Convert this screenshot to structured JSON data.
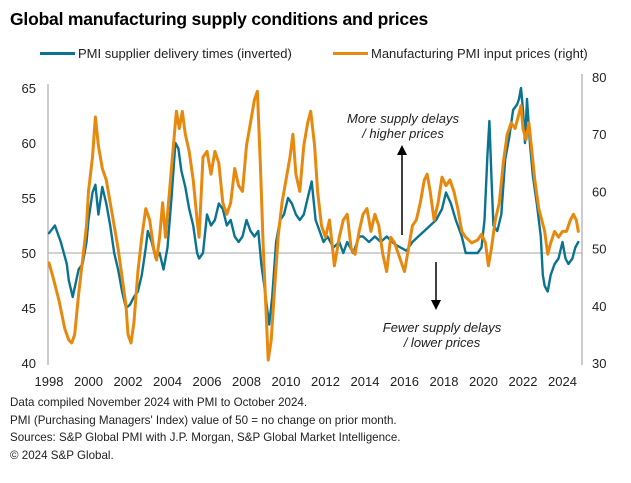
{
  "chart_data": {
    "type": "line",
    "title": "Global manufacturing supply conditions and prices",
    "xlabel": "",
    "ylabel": "",
    "y2label": "",
    "xlim": [
      1998,
      2024.9
    ],
    "ylim": [
      40,
      65
    ],
    "y2lim": [
      30,
      80
    ],
    "x_ticks": [
      "1998",
      "2000",
      "2002",
      "2004",
      "2006",
      "2008",
      "2010",
      "2012",
      "2014",
      "2016",
      "2018",
      "2020",
      "2022",
      "2024"
    ],
    "y_ticks": [
      "40",
      "45",
      "50",
      "55",
      "60",
      "65"
    ],
    "y2_ticks": [
      "30",
      "40",
      "50",
      "60",
      "70",
      "80"
    ],
    "reference_line": {
      "axis": "left",
      "value": 50
    },
    "grid": false,
    "legend_position": "top",
    "series": [
      {
        "name": "PMI supplier delivery times (inverted)",
        "axis": "left",
        "color": "#0A7391",
        "x": [
          1998.0,
          1998.3,
          1998.6,
          1998.9,
          1999.0,
          1999.2,
          1999.5,
          1999.7,
          1999.9,
          2000.0,
          2000.2,
          2000.35,
          2000.5,
          2000.7,
          2000.9,
          2001.1,
          2001.3,
          2001.5,
          2001.7,
          2001.9,
          2002.1,
          2002.3,
          2002.5,
          2002.7,
          2002.9,
          2003.0,
          2003.2,
          2003.4,
          2003.6,
          2003.8,
          2004.0,
          2004.2,
          2004.4,
          2004.55,
          2004.7,
          2004.9,
          2005.1,
          2005.3,
          2005.5,
          2005.6,
          2005.8,
          2006.0,
          2006.2,
          2006.4,
          2006.6,
          2006.8,
          2007.0,
          2007.2,
          2007.4,
          2007.6,
          2007.8,
          2008.0,
          2008.2,
          2008.4,
          2008.6,
          2008.75,
          2008.9,
          2009.0,
          2009.15,
          2009.3,
          2009.5,
          2009.7,
          2009.9,
          2010.1,
          2010.3,
          2010.5,
          2010.7,
          2010.9,
          2011.1,
          2011.3,
          2011.5,
          2011.7,
          2011.9,
          2012.1,
          2012.4,
          2012.7,
          2012.9,
          2013.1,
          2013.4,
          2013.7,
          2013.9,
          2014.2,
          2014.5,
          2014.8,
          2015.1,
          2015.5,
          2015.8,
          2016.1,
          2016.4,
          2016.7,
          2017.0,
          2017.3,
          2017.6,
          2017.9,
          2018.1,
          2018.35,
          2018.6,
          2018.9,
          2019.1,
          2019.4,
          2019.7,
          2019.9,
          2020.05,
          2020.2,
          2020.3,
          2020.4,
          2020.5,
          2020.7,
          2020.9,
          2021.1,
          2021.3,
          2021.5,
          2021.7,
          2021.8,
          2021.9,
          2022.0,
          2022.1,
          2022.2,
          2022.35,
          2022.5,
          2022.7,
          2022.9,
          2023.0,
          2023.1,
          2023.25,
          2023.4,
          2023.6,
          2023.8,
          2024.0,
          2024.15,
          2024.3,
          2024.5,
          2024.65,
          2024.8
        ],
        "values": [
          51.8,
          52.5,
          51,
          49,
          47.5,
          46,
          48.5,
          49,
          51,
          53,
          55.5,
          56.2,
          53.5,
          56,
          54.5,
          52.5,
          50,
          48.5,
          46.5,
          45,
          45.3,
          46,
          46.5,
          48,
          50.5,
          52,
          51,
          49.5,
          50,
          48.5,
          50.5,
          55,
          60,
          59.5,
          57.5,
          56,
          54,
          52.5,
          50,
          49.5,
          50,
          53.5,
          52.5,
          53,
          54.5,
          54,
          52.5,
          53,
          51.5,
          51,
          51.5,
          53,
          52,
          51.5,
          52,
          49,
          47,
          45.5,
          43.5,
          46,
          51,
          53,
          53.5,
          55,
          54.5,
          53.5,
          53,
          53.5,
          55,
          56.5,
          53,
          52,
          51,
          51.5,
          50.5,
          51,
          50,
          51,
          50,
          51.5,
          51.5,
          51,
          51.5,
          51,
          51.5,
          50.8,
          50.5,
          50.2,
          51,
          51.5,
          52,
          52.5,
          53,
          54,
          55.5,
          54.5,
          53,
          51.5,
          50,
          50,
          50,
          50.5,
          53,
          59,
          62,
          57,
          52.5,
          52,
          53.5,
          58.5,
          60.5,
          63,
          63.5,
          64,
          65,
          63,
          60,
          64,
          60,
          57,
          54.5,
          51.5,
          48,
          47,
          46.5,
          48,
          49,
          49.5,
          51,
          49.5,
          49,
          49.5,
          50.5,
          51
        ]
      },
      {
        "name": "Manufacturing PMI input prices (right)",
        "axis": "right",
        "color": "#E8890F",
        "x": [
          1998.0,
          1998.2,
          1998.5,
          1998.8,
          1999.0,
          1999.15,
          1999.3,
          1999.5,
          1999.7,
          1999.9,
          2000.0,
          2000.2,
          2000.35,
          2000.5,
          2000.7,
          2000.9,
          2001.1,
          2001.3,
          2001.5,
          2001.7,
          2001.9,
          2002.0,
          2002.15,
          2002.3,
          2002.5,
          2002.7,
          2002.9,
          2003.1,
          2003.3,
          2003.45,
          2003.6,
          2003.75,
          2003.9,
          2004.1,
          2004.3,
          2004.45,
          2004.6,
          2004.75,
          2004.9,
          2005.1,
          2005.3,
          2005.5,
          2005.6,
          2005.8,
          2006.0,
          2006.2,
          2006.4,
          2006.6,
          2006.8,
          2007.0,
          2007.2,
          2007.4,
          2007.6,
          2007.8,
          2008.0,
          2008.2,
          2008.4,
          2008.55,
          2008.7,
          2008.85,
          2009.0,
          2009.1,
          2009.25,
          2009.4,
          2009.6,
          2009.8,
          2010.0,
          2010.2,
          2010.35,
          2010.5,
          2010.7,
          2010.9,
          2011.1,
          2011.25,
          2011.45,
          2011.6,
          2011.8,
          2012.0,
          2012.2,
          2012.45,
          2012.7,
          2012.9,
          2013.1,
          2013.3,
          2013.5,
          2013.7,
          2013.9,
          2014.1,
          2014.3,
          2014.5,
          2014.7,
          2014.9,
          2015.1,
          2015.3,
          2015.5,
          2015.8,
          2016.0,
          2016.2,
          2016.4,
          2016.6,
          2016.8,
          2017.0,
          2017.15,
          2017.3,
          2017.5,
          2017.7,
          2017.9,
          2018.1,
          2018.3,
          2018.5,
          2018.7,
          2018.9,
          2019.1,
          2019.4,
          2019.7,
          2019.9,
          2020.1,
          2020.25,
          2020.4,
          2020.6,
          2020.8,
          2021.0,
          2021.2,
          2021.4,
          2021.6,
          2021.75,
          2021.9,
          2022.0,
          2022.15,
          2022.3,
          2022.45,
          2022.6,
          2022.8,
          2022.95,
          2023.1,
          2023.25,
          2023.4,
          2023.6,
          2023.8,
          2024.0,
          2024.2,
          2024.4,
          2024.55,
          2024.7,
          2024.8
        ],
        "values": [
          47.5,
          45,
          41,
          36,
          34,
          33.5,
          35,
          42,
          48,
          54,
          60,
          66,
          73,
          68,
          64,
          62,
          58,
          54,
          50,
          45,
          40,
          35,
          33.5,
          37,
          46,
          52,
          57,
          55,
          50,
          48,
          52,
          58,
          52,
          60,
          68,
          74,
          71,
          74,
          70,
          67,
          62,
          55,
          52,
          66,
          67,
          63,
          67,
          65,
          58,
          56,
          58,
          64,
          61,
          60,
          68,
          72,
          76,
          77.5,
          65,
          50,
          38,
          30.5,
          34,
          42,
          52,
          58,
          62,
          66,
          70,
          63,
          60,
          68,
          72,
          74,
          68,
          60,
          54,
          52,
          55,
          47,
          52,
          55,
          56,
          50,
          49,
          53,
          56,
          57,
          53,
          56,
          54,
          49,
          46,
          52,
          51,
          48,
          46,
          50,
          54,
          55,
          58,
          62,
          63,
          60,
          55,
          58,
          62.5,
          61,
          62,
          60,
          57,
          53,
          52,
          51,
          51.5,
          52.5,
          51,
          47,
          50,
          55,
          58,
          65,
          70,
          72,
          71,
          73,
          75,
          71,
          69,
          72,
          67,
          62,
          57,
          55,
          53,
          49,
          51,
          53,
          52,
          53,
          53,
          55,
          56,
          55,
          53
        ]
      }
    ],
    "annotations": [
      {
        "text_lines": [
          "More supply delays",
          "/ higher prices"
        ],
        "arrow": "up"
      },
      {
        "text_lines": [
          "Fewer supply delays",
          "/ lower prices"
        ],
        "arrow": "down"
      }
    ]
  },
  "footer": {
    "line1": "Data compiled November 2024 with PMI to October 2024.",
    "line2": "PMI (Purchasing Managers' Index) value of 50 = no change on prior month.",
    "line3": "Sources: S&P Global PMI with J.P. Morgan, S&P Global Market Intelligence.",
    "line4": "© 2024 S&P Global."
  }
}
